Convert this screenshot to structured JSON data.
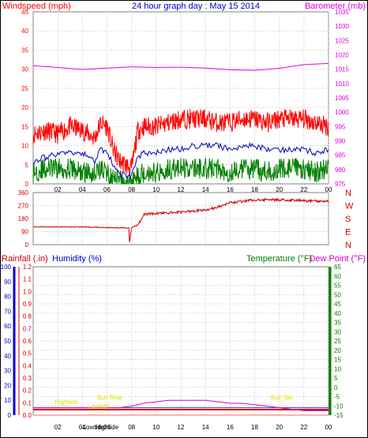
{
  "chart_data": {
    "type": "line",
    "title": "24 hour graph day : May 15 2014",
    "colors": {
      "wind_red": "#ff0000",
      "wind_blue": "#0000c0",
      "wind_green": "#008000",
      "barometer": "#e000e0",
      "direction": "#cc0000",
      "humidity": "#0000cc",
      "temperature": "#008000",
      "dewpoint": "#cc00cc",
      "rain": "#cc0000",
      "annotation": "#e0e000",
      "grid": "#c8c8c8"
    },
    "x_ticks": [
      "02",
      "04",
      "06",
      "08",
      "10",
      "12",
      "14",
      "16",
      "18",
      "20",
      "22",
      "00"
    ],
    "wind_panel": {
      "left_label": "Windspeed (mph)",
      "right_label": "Barometer (mb)",
      "left_ticks": [
        "0",
        "5",
        "10",
        "15",
        "20",
        "25",
        "30",
        "35",
        "40",
        "45"
      ],
      "right_ticks": [
        "975",
        "980",
        "985",
        "990",
        "995",
        "1000",
        "1005",
        "1010",
        "1015",
        "1020",
        "1025",
        "1030",
        "1035"
      ],
      "ylim": [
        0,
        45
      ],
      "right_ylim": [
        975,
        1035
      ],
      "hours": [
        0,
        1,
        2,
        3,
        4,
        5,
        5.5,
        6,
        6.5,
        7,
        7.5,
        8,
        8.5,
        9,
        10,
        11,
        12,
        13,
        14,
        15,
        16,
        17,
        18,
        19,
        20,
        21,
        22,
        23,
        24
      ],
      "gust": [
        13,
        14,
        13,
        15,
        14,
        12,
        16,
        15,
        9,
        6,
        5,
        4,
        14,
        15,
        15,
        16,
        17,
        17,
        17,
        16,
        16,
        17,
        17,
        16,
        17,
        17,
        17,
        16,
        15
      ],
      "average": [
        6,
        7,
        8,
        8,
        8,
        6,
        9,
        8,
        5,
        3,
        2,
        2,
        7,
        8,
        8,
        9,
        9,
        10,
        10,
        10,
        9,
        10,
        10,
        9,
        9,
        9,
        9,
        8,
        9
      ],
      "minimum": [
        3,
        4,
        4,
        4,
        3,
        3,
        4,
        3,
        1,
        1,
        0,
        0,
        2,
        3,
        3,
        4,
        4,
        4,
        4,
        4,
        3,
        4,
        4,
        3,
        4,
        4,
        4,
        3,
        4
      ],
      "barometer_hours": [
        0,
        2,
        4,
        6,
        8,
        10,
        12,
        14,
        16,
        18,
        20,
        22,
        24
      ],
      "barometer": [
        1016.2,
        1015.6,
        1014.9,
        1015.4,
        1015.8,
        1015.6,
        1015.7,
        1015.4,
        1014.8,
        1014.6,
        1015.3,
        1016.6,
        1017.0
      ]
    },
    "direction_panel": {
      "left_ticks": [
        "0",
        "90",
        "180",
        "270",
        "360"
      ],
      "compass": [
        "N",
        "W",
        "S",
        "E",
        "N"
      ],
      "ylim": [
        0,
        360
      ],
      "hours": [
        0,
        2,
        4,
        6,
        7.8,
        7.81,
        8.0,
        8.5,
        9,
        10,
        12,
        14,
        15,
        16,
        18,
        20,
        22,
        24
      ],
      "values": [
        123,
        122,
        122,
        118,
        115,
        10,
        120,
        135,
        210,
        215,
        225,
        240,
        260,
        290,
        310,
        310,
        305,
        298
      ]
    },
    "temp_panel": {
      "label_rain": "Rainfall (.in)",
      "label_humidity": "Humidity (%)",
      "label_temperature": "Temperature (°F)",
      "label_dewpoint": "Dew Point (°F)",
      "rain_ticks": [
        "0.0",
        "0.1",
        "0.2",
        "0.3",
        "0.4",
        "0.5",
        "0.6",
        "0.7",
        "0.8",
        "0.9",
        "1.0",
        "1.1",
        "1.2"
      ],
      "humidity_ticks": [
        "0",
        "10",
        "20",
        "30",
        "40",
        "50",
        "60",
        "70",
        "80",
        "90",
        "100"
      ],
      "temp_ticks": [
        "-15",
        "-10",
        "-5",
        "0",
        "5",
        "10",
        "15",
        "20",
        "25",
        "30",
        "35",
        "40",
        "45",
        "50",
        "55",
        "60",
        "65"
      ],
      "humidity_ylim": [
        0,
        100
      ],
      "temp_ylim": [
        -15,
        65
      ],
      "hours": [
        0,
        2,
        4,
        6,
        7,
        8,
        9,
        10,
        11,
        12,
        13,
        14,
        15,
        16,
        17,
        18,
        19,
        20,
        21,
        22,
        23,
        24
      ],
      "humidity": [
        5,
        5,
        5,
        5,
        5,
        6,
        8,
        9,
        10,
        10,
        10,
        10,
        9,
        8,
        8,
        7,
        6,
        5,
        4,
        3,
        3,
        3
      ],
      "dewpoint": [
        -11,
        -11,
        -11,
        -11,
        -11,
        -11,
        -11,
        -11,
        -11,
        -11,
        -11,
        -11,
        -11,
        -11,
        -11,
        -11,
        -11,
        -11,
        -11,
        -11,
        -11,
        -11
      ],
      "temperature": [
        -12,
        -12,
        -12,
        -12,
        -12,
        -12,
        -12,
        -12,
        -12,
        -12,
        -12,
        -12,
        -12,
        -12,
        -12,
        -12,
        -12,
        -12,
        -12,
        -12,
        -12,
        -12
      ],
      "rainfall": [
        0.0,
        0.0,
        0.0,
        0.0,
        0.0,
        0.0,
        0.0,
        0.0,
        0.0,
        0.0,
        0.0,
        0.0,
        0.0,
        0.0,
        0.0,
        0.0,
        0.0,
        0.0,
        0.0,
        0.0,
        0.0,
        0.0
      ],
      "annotations": [
        {
          "text": "Hightide",
          "hour": 2.7,
          "level": 0.09
        },
        {
          "text": "Lowtide",
          "hour": 5.3,
          "level": 0.055
        },
        {
          "text": "Sun Rise",
          "hour": 6.2,
          "level": 0.125
        },
        {
          "text": "Sun Set",
          "hour": 20.2,
          "level": 0.125
        }
      ],
      "bottom_labels": [
        {
          "text": "Lowtide",
          "hour": 4.9
        },
        {
          "text": "Hightide",
          "hour": 6.0
        }
      ]
    }
  }
}
